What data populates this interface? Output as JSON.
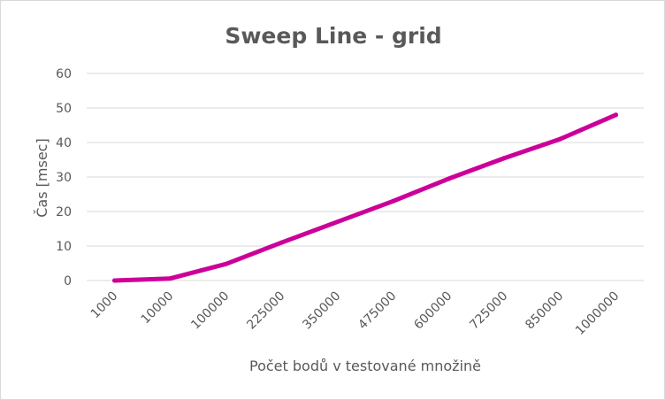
{
  "chart_data": {
    "type": "line",
    "title": "Sweep Line - grid",
    "xlabel": "Počet bodů v testované množině",
    "ylabel": "Čas [msec]",
    "categories": [
      "1000",
      "10000",
      "100000",
      "225000",
      "350000",
      "475000",
      "600000",
      "725000",
      "850000",
      "1000000"
    ],
    "series": [
      {
        "values": [
          0,
          0.6,
          4.8,
          11,
          17,
          23,
          29.5,
          35.5,
          41,
          48
        ]
      }
    ],
    "ylim": [
      0,
      60
    ],
    "yticks": [
      "0",
      "10",
      "20",
      "30",
      "40",
      "50",
      "60"
    ],
    "grid": true,
    "legend": "none",
    "colors": {
      "series": "#cc0099",
      "grid": "#d9d9d9",
      "text": "#595959"
    }
  }
}
